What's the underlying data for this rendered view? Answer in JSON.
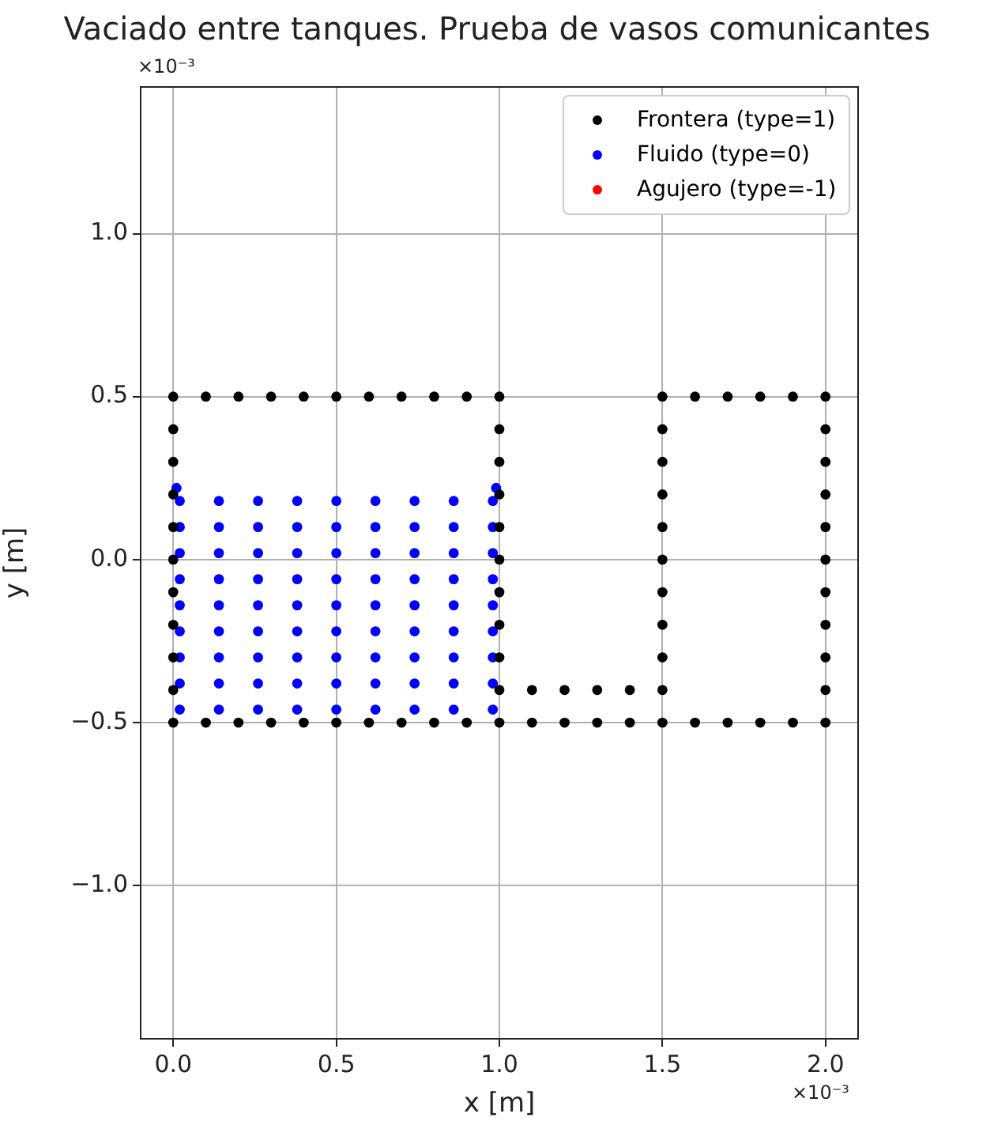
{
  "chart_data": {
    "type": "scatter",
    "title": "Vaciado entre tanques. Prueba de vasos comunicantes",
    "xlabel": "x [m]",
    "ylabel": "y [m]",
    "xlim": [
      -0.1,
      2.1
    ],
    "ylim": [
      -1.47,
      1.45
    ],
    "xticks": [
      {
        "value": 0,
        "label": "0.0"
      },
      {
        "value": 0.5,
        "label": "0.5"
      },
      {
        "value": 1,
        "label": "1.0"
      },
      {
        "value": 1.5,
        "label": "1.5"
      },
      {
        "value": 2,
        "label": "2.0"
      }
    ],
    "yticks": [
      {
        "value": -1,
        "label": "−1.0"
      },
      {
        "value": -0.5,
        "label": "−0.5"
      },
      {
        "value": 0,
        "label": "0.0"
      },
      {
        "value": 0.5,
        "label": "0.5"
      },
      {
        "value": 1,
        "label": "1.0"
      }
    ],
    "annotations": [
      "×10⁻³",
      "×10⁻³"
    ],
    "grid": true,
    "legend": "top right",
    "marker": "circle",
    "series": [
      {
        "name": "Frontera (type=1)",
        "color": "#000000",
        "x": [
          0,
          0,
          0,
          0,
          0,
          0,
          0,
          0,
          0,
          0,
          0,
          0.1,
          0.2,
          0.3,
          0.4,
          0.5,
          0.6,
          0.7,
          0.8,
          0.9,
          1,
          1,
          1,
          1,
          1,
          1,
          1,
          1,
          1,
          1,
          1.1,
          1.2,
          1.3,
          1.4,
          1.5,
          1.5,
          1.5,
          1.5,
          1.5,
          1.5,
          1.5,
          1.5,
          1.5,
          1.5,
          1.6,
          1.7,
          1.8,
          1.9,
          2,
          2,
          2,
          2,
          2,
          2,
          2,
          2,
          2,
          2,
          0.1,
          0.2,
          0.3,
          0.4,
          0.5,
          0.6,
          0.7,
          0.8,
          0.9,
          1,
          1.1,
          1.2,
          1.3,
          1.4,
          1.5,
          1.6,
          1.7,
          1.8,
          1.9,
          2
        ],
        "values": [
          -0.5,
          -0.4,
          -0.3,
          -0.2,
          -0.1,
          0,
          0.1,
          0.2,
          0.3,
          0.4,
          0.5,
          0.5,
          0.5,
          0.5,
          0.5,
          0.5,
          0.5,
          0.5,
          0.5,
          0.5,
          0.5,
          0.4,
          0.3,
          0.2,
          0.1,
          0,
          -0.1,
          -0.2,
          -0.3,
          -0.4,
          -0.4,
          -0.4,
          -0.4,
          -0.4,
          -0.4,
          -0.3,
          -0.2,
          -0.1,
          0,
          0.1,
          0.2,
          0.3,
          0.4,
          0.5,
          0.5,
          0.5,
          0.5,
          0.5,
          0.5,
          0.4,
          0.3,
          0.2,
          0.1,
          0,
          -0.1,
          -0.2,
          -0.3,
          -0.4,
          -0.5,
          -0.5,
          -0.5,
          -0.5,
          -0.5,
          -0.5,
          -0.5,
          -0.5,
          -0.5,
          -0.5,
          -0.5,
          -0.5,
          -0.5,
          -0.5,
          -0.5,
          -0.5,
          -0.5,
          -0.5,
          -0.5,
          -0.5
        ]
      },
      {
        "name": "Fluido (type=0)",
        "color": "#0000ff",
        "x": [
          0.02,
          0.14,
          0.26,
          0.38,
          0.5,
          0.62,
          0.74,
          0.86,
          0.98,
          0.02,
          0.14,
          0.26,
          0.38,
          0.5,
          0.62,
          0.74,
          0.86,
          0.98,
          0.02,
          0.14,
          0.26,
          0.38,
          0.5,
          0.62,
          0.74,
          0.86,
          0.98,
          0.02,
          0.14,
          0.26,
          0.38,
          0.5,
          0.62,
          0.74,
          0.86,
          0.98,
          0.02,
          0.14,
          0.26,
          0.38,
          0.5,
          0.62,
          0.74,
          0.86,
          0.98,
          0.02,
          0.14,
          0.26,
          0.38,
          0.5,
          0.62,
          0.74,
          0.86,
          0.98,
          0.02,
          0.14,
          0.26,
          0.38,
          0.5,
          0.62,
          0.74,
          0.86,
          0.98,
          0.02,
          0.14,
          0.26,
          0.38,
          0.5,
          0.62,
          0.74,
          0.86,
          0.98,
          0.02,
          0.14,
          0.26,
          0.38,
          0.5,
          0.62,
          0.74,
          0.86,
          0.98,
          0.01,
          0.99
        ],
        "values": [
          -0.46,
          -0.46,
          -0.46,
          -0.46,
          -0.46,
          -0.46,
          -0.46,
          -0.46,
          -0.46,
          -0.38,
          -0.38,
          -0.38,
          -0.38,
          -0.38,
          -0.38,
          -0.38,
          -0.38,
          -0.38,
          -0.3,
          -0.3,
          -0.3,
          -0.3,
          -0.3,
          -0.3,
          -0.3,
          -0.3,
          -0.3,
          -0.22,
          -0.22,
          -0.22,
          -0.22,
          -0.22,
          -0.22,
          -0.22,
          -0.22,
          -0.22,
          -0.14,
          -0.14,
          -0.14,
          -0.14,
          -0.14,
          -0.14,
          -0.14,
          -0.14,
          -0.14,
          -0.06,
          -0.06,
          -0.06,
          -0.06,
          -0.06,
          -0.06,
          -0.06,
          -0.06,
          -0.06,
          0.02,
          0.02,
          0.02,
          0.02,
          0.02,
          0.02,
          0.02,
          0.02,
          0.02,
          0.1,
          0.1,
          0.1,
          0.1,
          0.1,
          0.1,
          0.1,
          0.1,
          0.1,
          0.18,
          0.18,
          0.18,
          0.18,
          0.18,
          0.18,
          0.18,
          0.18,
          0.18,
          0.22,
          0.22
        ]
      },
      {
        "name": "Agujero (type=-1)",
        "color": "#ff0000"
      }
    ]
  }
}
